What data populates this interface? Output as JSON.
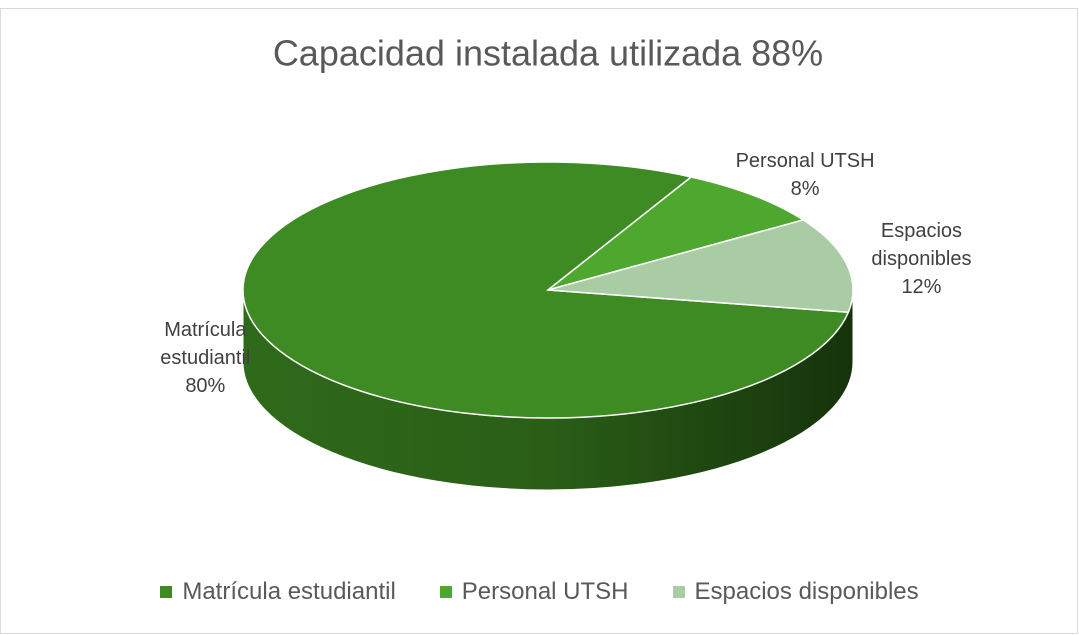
{
  "chart_data": {
    "type": "pie",
    "title": "Capacidad instalada utilizada 88%",
    "categories": [
      "Matrícula estudiantil",
      "Personal UTSH",
      "Espacios disponibles"
    ],
    "values": [
      80,
      8,
      12
    ],
    "value_labels": [
      "80%",
      "8%",
      "12%"
    ],
    "colors": [
      "#3e8a23",
      "#4ea72e",
      "#a9cca4"
    ],
    "legend": "bottom"
  }
}
